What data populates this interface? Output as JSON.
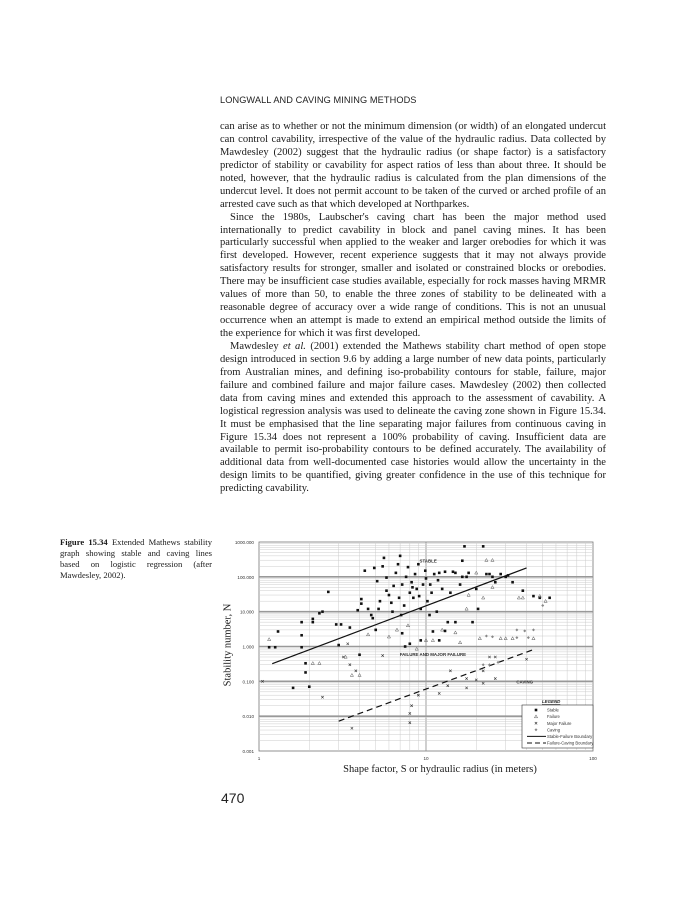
{
  "header": {
    "running_title": "LONGWALL AND CAVING MINING METHODS"
  },
  "body": {
    "paragraphs": [
      "can arise as to whether or not the minimum dimension (or width) of an elongated undercut can control cavability, irrespective of the value of the hydraulic radius. Data collected by Mawdesley (2002) suggest that the hydraulic radius (or shape factor) is a satisfactory predictor of stability or cavability for aspect ratios of less than about three. It should be noted, however, that the hydraulic radius is calculated from the plan dimensions of the undercut level. It does not permit account to be taken of the curved or arched profile of an arrested cave such as that which developed at Northparkes.",
      "Since the 1980s, Laubscher's caving chart has been the major method used internationally to predict cavability in block and panel caving mines. It has been particularly successful when applied to the weaker and larger orebodies for which it was first developed. However, recent experience suggests that it may not always provide satisfactory results for stronger, smaller and isolated or constrained blocks or orebodies. There may be insufficient case studies available, especially for rock masses having MRMR values of more than 50, to enable the three zones of stability to be delineated with a reasonable degree of accuracy over a wide range of conditions. This is not an unusual occurrence when an attempt is made to extend an empirical method outside the limits of the experience for which it was first developed."
    ],
    "p3_author": "Mawdesley ",
    "p3_etal": "et al.",
    "p3_rest": " (2001) extended the Mathews stability chart method of open stope design introduced in section 9.6 by adding a large number of new data points, particularly from Australian mines, and defining iso-probability contours for stable, failure, major failure and combined failure and major failure cases. Mawdesley (2002) then collected data from caving mines and extended this approach to the assessment of cavability. A logistical regression analysis was used to delineate the caving zone shown in Figure 15.34. It must be emphasised that the line separating major failures from continuous caving in Figure 15.34 does not represent a 100% probability of caving. Insufficient data are available to permit iso-probability contours to be defined accurately. The availability of additional data from well-documented case histories would allow the uncertainty in the design limits to be quantified, giving greater confidence in the use of this technique for predicting cavability."
  },
  "caption": {
    "label": "Figure 15.34",
    "text": " Extended Mathews stability graph showing stable and caving lines based on logistic regression (after Mawdesley, 2002)."
  },
  "page_number": "470",
  "chart_data": {
    "type": "scatter",
    "xlabel": "Shape factor, S or hydraulic radius (in meters)",
    "ylabel": "Stability number, N",
    "xscale": "log",
    "yscale": "log",
    "xlim": [
      1,
      100
    ],
    "ylim": [
      0.001,
      1000
    ],
    "xticks": [
      "1",
      "10",
      "100"
    ],
    "yticks": [
      "1000.000",
      "100.000",
      "10.000",
      "1.000",
      "0.100",
      "0.010",
      "0.001"
    ],
    "grid": true,
    "legend_placement": "bottom-right",
    "legend_title": "LEGEND",
    "zone_labels": [
      {
        "text": "STABLE",
        "x": 10.3,
        "y": 260
      },
      {
        "text": "FAILURE AND MAJOR FAILURE",
        "x": 11,
        "y": 0.53
      },
      {
        "text": "CAVING",
        "x": 39,
        "y": 0.086
      }
    ],
    "series": [
      {
        "name": "Stable",
        "marker": "square",
        "points": [
          [
            1.15,
            0.95
          ],
          [
            1.25,
            0.95
          ],
          [
            1.3,
            2.7
          ],
          [
            1.8,
            5
          ],
          [
            1.8,
            2.1
          ],
          [
            1.8,
            0.95
          ],
          [
            2.1,
            6.2
          ],
          [
            2.1,
            5
          ],
          [
            2.3,
            9
          ],
          [
            2.4,
            10
          ],
          [
            2.6,
            37
          ],
          [
            2.9,
            4.3
          ],
          [
            3.1,
            4.3
          ],
          [
            3.0,
            1.1
          ],
          [
            3.5,
            3.5
          ],
          [
            3.9,
            11
          ],
          [
            4.1,
            23
          ],
          [
            4.1,
            17
          ],
          [
            4.3,
            150
          ],
          [
            4.5,
            12
          ],
          [
            4.7,
            8
          ],
          [
            4.8,
            6.5
          ],
          [
            4.9,
            180
          ],
          [
            5.1,
            75
          ],
          [
            5.3,
            20
          ],
          [
            5.5,
            200
          ],
          [
            5.6,
            350
          ],
          [
            5.8,
            95
          ],
          [
            6.0,
            30
          ],
          [
            6.2,
            18
          ],
          [
            6.4,
            55
          ],
          [
            6.6,
            130
          ],
          [
            6.8,
            230
          ],
          [
            7.0,
            400
          ],
          [
            7.2,
            60
          ],
          [
            7.4,
            15
          ],
          [
            7.6,
            100
          ],
          [
            7.8,
            190
          ],
          [
            8.0,
            35
          ],
          [
            8.2,
            70
          ],
          [
            8.4,
            25
          ],
          [
            8.6,
            120
          ],
          [
            8.8,
            45
          ],
          [
            9.0,
            230
          ],
          [
            9.3,
            12
          ],
          [
            9.6,
            60
          ],
          [
            9.9,
            150
          ],
          [
            10.2,
            20
          ],
          [
            10.5,
            8
          ],
          [
            10.8,
            35
          ],
          [
            11.2,
            120
          ],
          [
            11.6,
            10
          ],
          [
            12,
            130
          ],
          [
            12.5,
            45
          ],
          [
            13,
            140
          ],
          [
            13.5,
            5
          ],
          [
            14,
            35
          ],
          [
            14.5,
            140
          ],
          [
            15,
            130
          ],
          [
            16,
            60
          ],
          [
            16.5,
            100
          ],
          [
            17,
            750
          ],
          [
            17.5,
            100
          ],
          [
            18,
            130
          ],
          [
            19,
            5
          ],
          [
            20,
            45
          ],
          [
            20.5,
            12
          ],
          [
            22,
            750
          ],
          [
            23,
            120
          ],
          [
            24,
            120
          ],
          [
            25,
            100
          ],
          [
            26,
            70
          ],
          [
            28,
            120
          ],
          [
            30,
            100
          ],
          [
            31,
            110
          ],
          [
            33,
            70
          ],
          [
            38,
            40
          ],
          [
            44,
            28
          ],
          [
            48,
            25
          ],
          [
            55,
            25
          ],
          [
            5.0,
            3.0
          ],
          [
            7.2,
            2.4
          ],
          [
            8.0,
            1.2
          ],
          [
            9.3,
            1.5
          ],
          [
            11,
            2.7
          ],
          [
            12,
            1.5
          ],
          [
            13,
            2.8
          ],
          [
            15,
            5
          ],
          [
            16.5,
            290
          ],
          [
            7.5,
            1.0
          ],
          [
            1.9,
            0.33
          ],
          [
            1.9,
            0.18
          ],
          [
            2.0,
            0.07
          ],
          [
            1.6,
            0.065
          ],
          [
            4.0,
            0.58
          ],
          [
            5.8,
            40
          ],
          [
            6.3,
            10
          ],
          [
            7.1,
            8
          ],
          [
            8.3,
            50
          ],
          [
            9.1,
            28
          ],
          [
            10,
            90
          ],
          [
            10.6,
            60
          ],
          [
            11.8,
            80
          ],
          [
            6.9,
            25
          ],
          [
            5.2,
            12
          ]
        ]
      },
      {
        "name": "Failure",
        "marker": "triangle",
        "points": [
          [
            1.15,
            1.6
          ],
          [
            2.1,
            0.33
          ],
          [
            2.3,
            0.33
          ],
          [
            3.3,
            0.5
          ],
          [
            3.6,
            0.15
          ],
          [
            4.0,
            0.15
          ],
          [
            4.5,
            2.2
          ],
          [
            6,
            1.9
          ],
          [
            6.7,
            3
          ],
          [
            7.8,
            4
          ],
          [
            8.8,
            0.85
          ],
          [
            10,
            1.5
          ],
          [
            11,
            1.5
          ],
          [
            12.5,
            3
          ],
          [
            15,
            2.5
          ],
          [
            16,
            1.3
          ],
          [
            17.5,
            12
          ],
          [
            18,
            30
          ],
          [
            21,
            1.7
          ],
          [
            22,
            25
          ],
          [
            25,
            50
          ],
          [
            28,
            1.7
          ],
          [
            30,
            1.7
          ],
          [
            33,
            1.7
          ],
          [
            36,
            25
          ],
          [
            38,
            25
          ],
          [
            44,
            1.7
          ],
          [
            48,
            28
          ],
          [
            52,
            20
          ],
          [
            23,
            300
          ],
          [
            25,
            300
          ],
          [
            20,
            130
          ]
        ]
      },
      {
        "name": "Major Failure",
        "marker": "x",
        "points": [
          [
            3.6,
            0.0045
          ],
          [
            8,
            0.0065
          ],
          [
            8,
            0.012
          ],
          [
            8.2,
            0.02
          ],
          [
            9,
            0.04
          ],
          [
            12,
            0.045
          ],
          [
            13.5,
            0.075
          ],
          [
            14,
            0.2
          ],
          [
            17.5,
            0.065
          ],
          [
            17.5,
            0.12
          ],
          [
            20,
            0.11
          ],
          [
            22,
            0.2
          ],
          [
            22,
            0.088
          ],
          [
            26,
            0.12
          ],
          [
            24,
            0.5
          ],
          [
            26,
            0.5
          ],
          [
            40,
            0.43
          ],
          [
            3.4,
            1.2
          ],
          [
            3.2,
            0.5
          ],
          [
            3.5,
            0.3
          ],
          [
            3.8,
            0.2
          ],
          [
            5.5,
            0.55
          ],
          [
            2.4,
            0.035
          ],
          [
            1.05,
            0.1
          ]
        ]
      },
      {
        "name": "Caving",
        "marker": "diamond",
        "points": [
          [
            22,
            0.3
          ],
          [
            24,
            0.3
          ],
          [
            27,
            0.35
          ],
          [
            23,
            2
          ],
          [
            25,
            1.9
          ],
          [
            35,
            1.8
          ],
          [
            41,
            1.8
          ],
          [
            44,
            3
          ],
          [
            50,
            15
          ],
          [
            35,
            3
          ],
          [
            39,
            2.8
          ]
        ]
      }
    ],
    "lines": [
      {
        "name": "Stable-Failure Boundary",
        "style": "solid",
        "points": [
          [
            1.2,
            0.32
          ],
          [
            40,
            180
          ]
        ]
      },
      {
        "name": "Failure-Caving Boundary",
        "style": "dashed",
        "points": [
          [
            3.0,
            0.0072
          ],
          [
            45,
            0.85
          ]
        ]
      }
    ]
  }
}
